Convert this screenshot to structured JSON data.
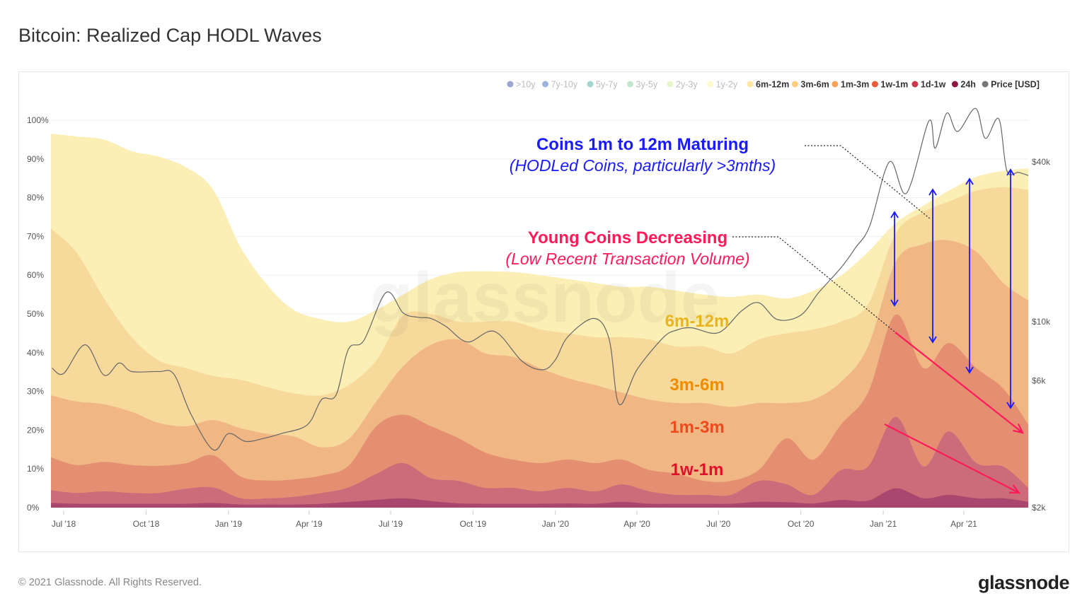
{
  "title": "Bitcoin: Realized Cap HODL Waves",
  "footer": {
    "copyright": "© 2021 Glassnode. All Rights Reserved.",
    "logo": "glassnode"
  },
  "watermark": "glassnode",
  "legend": [
    {
      "label": ">10y",
      "color": "#4a5aa8",
      "active": false
    },
    {
      "label": "7y-10y",
      "color": "#4b77be",
      "active": false
    },
    {
      "label": "5y-7y",
      "color": "#5bb3a8",
      "active": false
    },
    {
      "label": "3y-5y",
      "color": "#94d3a2",
      "active": false
    },
    {
      "label": "2y-3y",
      "color": "#d1eca0",
      "active": false
    },
    {
      "label": "1y-2y",
      "color": "#fbf3a8",
      "active": false
    },
    {
      "label": "6m-12m",
      "color": "#fde7a0",
      "active": true
    },
    {
      "label": "3m-6m",
      "color": "#fbcd7c",
      "active": true
    },
    {
      "label": "1m-3m",
      "color": "#f7a35c",
      "active": true
    },
    {
      "label": "1w-1m",
      "color": "#ea5b3a",
      "active": true
    },
    {
      "label": "1d-1w",
      "color": "#c9384a",
      "active": true
    },
    {
      "label": "24h",
      "color": "#8e1640",
      "active": true
    },
    {
      "label": "Price [USD]",
      "color": "#777777",
      "active": true
    }
  ],
  "annotations": {
    "maturing_title": "Coins 1m to 12m Maturing",
    "maturing_sub": "(HODLed Coins, particularly >3mths)",
    "young_title": "Young Coins Decreasing",
    "young_sub": "(Low Recent Transaction Volume)",
    "band_labels": [
      {
        "text": "6m-12m",
        "color": "#e8b422"
      },
      {
        "text": "3m-6m",
        "color": "#f08c00"
      },
      {
        "text": "1m-3m",
        "color": "#ee4a1e"
      },
      {
        "text": "1w-1m",
        "color": "#e0102a"
      }
    ],
    "maturing_color": "#1a1aff",
    "young_color": "#ff1a5a"
  },
  "chart_data": {
    "type": "area",
    "stacked": true,
    "title": "Bitcoin: Realized Cap HODL Waves",
    "y_axis": {
      "ticks": [
        "0%",
        "10%",
        "20%",
        "30%",
        "40%",
        "50%",
        "60%",
        "70%",
        "80%",
        "90%",
        "100%"
      ],
      "range": [
        0,
        100
      ]
    },
    "y2_axis": {
      "scale": "log",
      "ticks": [
        {
          "label": "$2k",
          "value": 2000
        },
        {
          "label": "$6k",
          "value": 6000
        },
        {
          "label": "$10k",
          "value": 10000
        },
        {
          "label": "$40k",
          "value": 40000
        }
      ]
    },
    "x_axis": {
      "ticks": [
        "Jul '18",
        "Oct '18",
        "Jan '19",
        "Apr '19",
        "Jul '19",
        "Oct '19",
        "Jan '20",
        "Apr '20",
        "Jul '20",
        "Oct '20",
        "Jan '21",
        "Apr '21"
      ],
      "tick_dates": [
        "2018-07-01",
        "2018-10-01",
        "2019-01-01",
        "2019-04-01",
        "2019-07-01",
        "2019-10-01",
        "2020-01-01",
        "2020-04-01",
        "2020-07-01",
        "2020-10-01",
        "2021-01-01",
        "2021-04-01"
      ],
      "range": [
        "2018-06-17",
        "2021-06-12"
      ]
    },
    "grid": true,
    "legend_position": "top-right",
    "dates": [
      "2018-06-18",
      "2018-07-15",
      "2018-08-15",
      "2018-09-15",
      "2018-10-15",
      "2018-11-15",
      "2018-12-15",
      "2019-01-15",
      "2019-02-15",
      "2019-03-15",
      "2019-04-15",
      "2019-05-15",
      "2019-06-15",
      "2019-07-15",
      "2019-08-15",
      "2019-09-15",
      "2019-10-15",
      "2019-11-15",
      "2019-12-15",
      "2020-01-15",
      "2020-02-15",
      "2020-03-15",
      "2020-04-15",
      "2020-05-15",
      "2020-06-15",
      "2020-07-15",
      "2020-08-15",
      "2020-09-15",
      "2020-10-15",
      "2020-11-15",
      "2020-12-15",
      "2021-01-15",
      "2021-02-15",
      "2021-03-15",
      "2021-04-15",
      "2021-05-15",
      "2021-06-12"
    ],
    "series": [
      {
        "name": "24h",
        "fill": "#a9476e",
        "values": [
          1.2,
          1,
          1,
          1,
          1,
          1,
          1.2,
          0.8,
          0.8,
          0.8,
          1,
          1.5,
          2,
          2.4,
          1.7,
          1.1,
          1,
          1,
          1,
          1.1,
          1,
          1.5,
          1,
          1,
          1,
          1,
          1.5,
          1.4,
          1.1,
          2,
          1.8,
          5,
          2.4,
          3.3,
          2.4,
          2.4,
          1.5
        ]
      },
      {
        "name": "1d-1w",
        "fill": "#cc6b7a",
        "values": [
          3.3,
          2.8,
          3.2,
          2.8,
          2.8,
          3.9,
          4.0,
          1.6,
          1.6,
          2.0,
          2.8,
          3.7,
          6.7,
          9.1,
          5.9,
          5.8,
          4.1,
          4.1,
          3.2,
          4.0,
          3.2,
          4.5,
          3.2,
          2.3,
          2.3,
          2.3,
          5.4,
          4.6,
          2.2,
          7.7,
          8.8,
          18.4,
          8.2,
          16.4,
          9.1,
          8.2,
          3.6
        ]
      },
      {
        "name": "1w-1m",
        "fill": "#e48f72",
        "values": [
          8.5,
          7.2,
          7.6,
          7.2,
          7.0,
          6.6,
          8.3,
          5.6,
          4.6,
          4.5,
          4.5,
          5.6,
          12.3,
          12.5,
          13.4,
          11.0,
          9.1,
          7.3,
          7.3,
          7.3,
          7.3,
          6.4,
          5.5,
          5.5,
          3.6,
          3.6,
          2.8,
          11.9,
          9.1,
          11.8,
          19.1,
          26.4,
          25.4,
          22.8,
          24.5,
          20.1,
          16.4
        ]
      },
      {
        "name": "1m-3m",
        "fill": "#f0b785",
        "values": [
          16,
          16.4,
          14.9,
          13.7,
          11.1,
          9.5,
          9.1,
          12.5,
          12,
          11.1,
          7.3,
          6.9,
          6.4,
          12.5,
          21,
          25.5,
          25.6,
          26.5,
          24.5,
          21,
          20.1,
          17.3,
          18.2,
          18.2,
          20.1,
          19.1,
          17.3,
          9.1,
          15.5,
          11,
          11.9,
          13.7,
          32,
          26.5,
          30,
          27.3,
          32
        ]
      },
      {
        "name": "3m-6m",
        "fill": "#f7d99c",
        "values": [
          43,
          38.6,
          27.3,
          19.3,
          16.1,
          15,
          11.4,
          12.5,
          12,
          11.1,
          13.4,
          13.9,
          10.6,
          13.1,
          8,
          4.6,
          8.2,
          9.1,
          10,
          11.6,
          12.4,
          14.3,
          15.5,
          14.6,
          14.6,
          13.8,
          16.4,
          18,
          18.1,
          15.5,
          10.9,
          7.3,
          8.3,
          10,
          15.8,
          24.7,
          28.5
        ]
      },
      {
        "name": "6m-12m",
        "fill": "#fbefb5",
        "values": [
          24.5,
          29.8,
          41,
          48,
          52.6,
          51.8,
          48,
          34,
          26,
          21.5,
          19.6,
          16.4,
          13,
          5.4,
          9,
          12.8,
          13,
          12.8,
          14,
          14,
          14,
          13,
          13.6,
          14.4,
          13.4,
          14.6,
          11.6,
          9,
          10,
          12,
          13.5,
          2.7,
          1.7,
          2.8,
          3.6,
          4.2,
          5.6
        ]
      }
    ],
    "price": {
      "name": "Price [USD]",
      "color": "#666666",
      "dates": [
        "2018-06-18",
        "2018-07-01",
        "2018-07-25",
        "2018-08-15",
        "2018-09-01",
        "2018-09-15",
        "2018-10-15",
        "2018-11-01",
        "2018-11-20",
        "2018-12-15",
        "2019-01-01",
        "2019-01-20",
        "2019-02-10",
        "2019-03-01",
        "2019-03-30",
        "2019-04-15",
        "2019-05-01",
        "2019-05-15",
        "2019-06-01",
        "2019-06-26",
        "2019-07-15",
        "2019-08-01",
        "2019-08-15",
        "2019-09-01",
        "2019-09-25",
        "2019-10-25",
        "2019-11-25",
        "2019-12-18",
        "2020-01-01",
        "2020-01-15",
        "2020-02-13",
        "2020-03-01",
        "2020-03-12",
        "2020-04-01",
        "2020-04-30",
        "2020-05-15",
        "2020-06-01",
        "2020-07-01",
        "2020-07-27",
        "2020-08-15",
        "2020-09-05",
        "2020-10-01",
        "2020-10-21",
        "2020-11-15",
        "2020-12-01",
        "2020-12-17",
        "2021-01-08",
        "2021-01-27",
        "2021-02-21",
        "2021-02-28",
        "2021-03-13",
        "2021-03-25",
        "2021-04-14",
        "2021-04-25",
        "2021-05-10",
        "2021-05-19",
        "2021-06-01",
        "2021-06-12"
      ],
      "values": [
        6700,
        6400,
        8200,
        6300,
        7000,
        6500,
        6500,
        6350,
        4500,
        3300,
        3800,
        3550,
        3650,
        3800,
        4100,
        5100,
        5300,
        7900,
        8500,
        12900,
        10800,
        10400,
        10300,
        9600,
        8400,
        9200,
        7100,
        6600,
        7200,
        8800,
        10300,
        8600,
        4900,
        6600,
        8700,
        9300,
        9500,
        9100,
        11000,
        11800,
        10200,
        10600,
        12900,
        16000,
        19000,
        23000,
        40000,
        30500,
        57000,
        45000,
        61000,
        52000,
        63500,
        49000,
        58000,
        37000,
        36500,
        35500
      ]
    }
  }
}
